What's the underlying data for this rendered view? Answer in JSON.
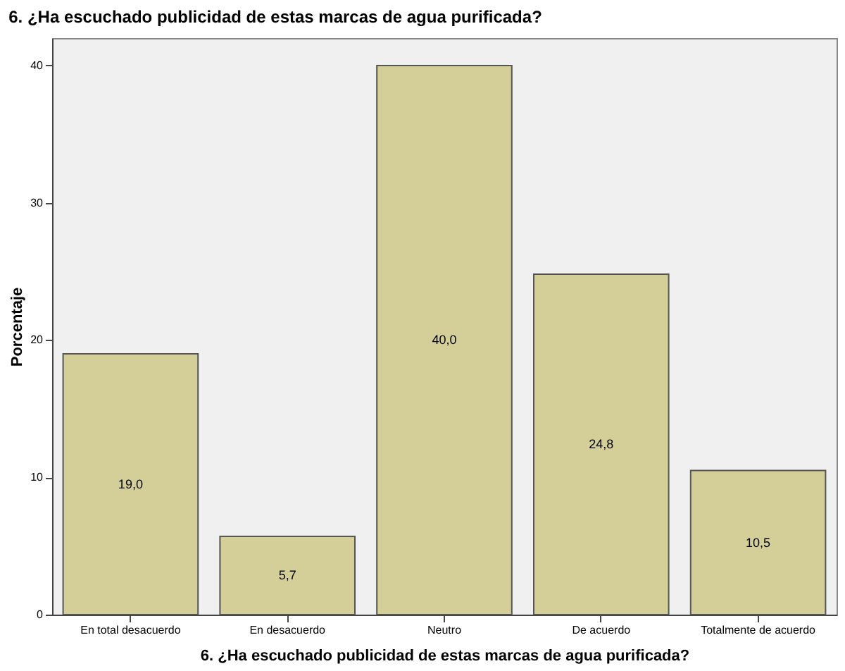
{
  "chart_data": {
    "type": "bar",
    "title": "6. ¿Ha escuchado publicidad de estas marcas de agua purificada?",
    "xlabel": "6. ¿Ha escuchado publicidad de estas marcas de agua purificada?",
    "ylabel": "Porcentaje",
    "categories": [
      "En total desacuerdo",
      "En desacuerdo",
      "Neutro",
      "De acuerdo",
      "Totalmente de acuerdo"
    ],
    "values": [
      19.0,
      5.7,
      40.0,
      24.8,
      10.5
    ],
    "value_labels": [
      "19,0",
      "5,7",
      "40,0",
      "24,8",
      "10,5"
    ],
    "color": "#d4cf98",
    "ylim": [
      0,
      42
    ],
    "yticks": [
      0,
      10,
      20,
      30,
      40
    ],
    "grid": false
  }
}
